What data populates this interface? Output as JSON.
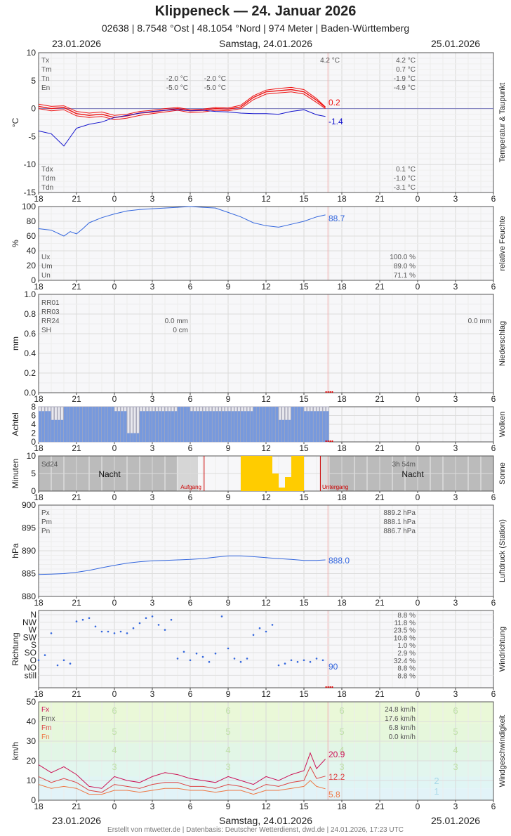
{
  "header": {
    "station": "Klippeneck",
    "separator": "—",
    "date_title": "24. Januar 2026",
    "subtitle": "02638  |  8.7548 °Ost  |  48.1054 °Nord  |  974 Meter  |  Baden-Württemberg",
    "date_left": "23.01.2026",
    "date_center": "Samstag, 24.01.2026",
    "date_right": "25.01.2026"
  },
  "footer": {
    "date_left": "23.01.2026",
    "date_center": "Samstag, 24.01.2026",
    "date_right": "25.01.2026",
    "credits": "Erstellt von mtwetter.de | Datenbasis: Deutscher Wetterdienst, dwd.de | 24.01.2026, 17:23 UTC"
  },
  "hour_ticks": [
    "18",
    "21",
    "0",
    "3",
    "6",
    "9",
    "12",
    "15",
    "18",
    "21",
    "0",
    "3",
    "6"
  ],
  "colors": {
    "temp": "#ee1111",
    "dew": "#1111cc",
    "blue": "#3366dd",
    "cloud": "#7799dd",
    "sun": "#ffcc00",
    "night": "#bbbbbb",
    "wind_fx": "#cc1155",
    "wind_fm": "#dd4444",
    "wind_fn": "#ee7744"
  },
  "chart_data": [
    {
      "type": "line",
      "id": "temperature",
      "ylabel": "°C",
      "side_label": "Temperatur & Taupunkt",
      "ylim": [
        -15,
        10
      ],
      "yticks": [
        10,
        5,
        0,
        -5,
        -10,
        -15
      ],
      "x_range_hours": [
        -6,
        30
      ],
      "series": [
        {
          "name": "Tx",
          "x": [
            -6,
            -5,
            -4,
            -3,
            -2,
            -1,
            0,
            1,
            2,
            3,
            4,
            5,
            6,
            7,
            8,
            9,
            10,
            11,
            12,
            13,
            14,
            15,
            16,
            16.7
          ],
          "values": [
            0.8,
            0.4,
            0.5,
            -0.5,
            -0.8,
            -0.6,
            -1.2,
            -1.0,
            -0.5,
            -0.3,
            0.0,
            0.2,
            -0.2,
            -0.1,
            0.2,
            0.1,
            0.6,
            2.3,
            3.3,
            3.6,
            3.8,
            3.4,
            1.8,
            0.3
          ]
        },
        {
          "name": "Tm",
          "x": [
            -6,
            -5,
            -4,
            -3,
            -2,
            -1,
            0,
            1,
            2,
            3,
            4,
            5,
            6,
            7,
            8,
            9,
            10,
            11,
            12,
            13,
            14,
            15,
            16,
            16.7
          ],
          "values": [
            0.4,
            0.0,
            0.2,
            -0.9,
            -1.2,
            -1.0,
            -1.6,
            -1.3,
            -0.8,
            -0.6,
            -0.3,
            0.0,
            -0.4,
            -0.3,
            0.0,
            -0.1,
            0.3,
            2.0,
            3.0,
            3.2,
            3.4,
            3.0,
            1.5,
            0.2
          ]
        },
        {
          "name": "Tn",
          "x": [
            -6,
            -5,
            -4,
            -3,
            -2,
            -1,
            0,
            1,
            2,
            3,
            4,
            5,
            6,
            7,
            8,
            9,
            10,
            11,
            12,
            13,
            14,
            15,
            16,
            16.7
          ],
          "values": [
            0.0,
            -0.4,
            -0.2,
            -1.3,
            -1.6,
            -1.4,
            -2.0,
            -1.7,
            -1.2,
            -0.9,
            -0.6,
            -0.3,
            -0.7,
            -0.6,
            -0.3,
            -0.4,
            0.0,
            1.6,
            2.6,
            2.8,
            3.0,
            2.6,
            1.1,
            0.0
          ]
        },
        {
          "name": "Td",
          "x": [
            -6,
            -5,
            -4,
            -3,
            -2,
            -1,
            0,
            1,
            2,
            3,
            4,
            5,
            6,
            7,
            8,
            9,
            10,
            11,
            12,
            13,
            14,
            15,
            16,
            16.7
          ],
          "values": [
            -4.0,
            -4.5,
            -6.7,
            -3.5,
            -2.8,
            -2.4,
            -1.6,
            -1.2,
            -0.8,
            -0.5,
            -0.3,
            -0.2,
            -0.4,
            -0.3,
            -0.5,
            -0.6,
            -0.8,
            -0.9,
            -0.9,
            -1.0,
            -0.5,
            -0.2,
            -1.1,
            -1.4
          ]
        }
      ],
      "stats_left": [
        {
          "label": "Tx",
          "v1": "",
          "v2": ""
        },
        {
          "label": "Tm",
          "v1": "",
          "v2": ""
        },
        {
          "label": "Tn",
          "v1": "-2.0 °C",
          "v2": "-2.0 °C"
        },
        {
          "label": "En",
          "v1": "-5.0 °C",
          "v2": "-5.0 °C"
        }
      ],
      "top_value": "4.2 °C",
      "stats_right": [
        "4.2 °C",
        "0.7 °C",
        "-1.9 °C",
        "-4.9 °C"
      ],
      "dew_stats": [
        {
          "label": "Tdx",
          "value": "0.1 °C"
        },
        {
          "label": "Tdm",
          "value": "-1.0 °C"
        },
        {
          "label": "Tdn",
          "value": "-3.1 °C"
        }
      ],
      "end_labels": [
        "0.2",
        "-1.4"
      ]
    },
    {
      "type": "line",
      "id": "humidity",
      "ylabel": "%",
      "side_label": "relative Feuchte",
      "ylim": [
        0,
        100
      ],
      "yticks": [
        100,
        80,
        60,
        40,
        20,
        0
      ],
      "series": [
        {
          "name": "relative Feuchte",
          "x": [
            -6,
            -5,
            -4,
            -3.5,
            -3,
            -2.5,
            -2,
            -1,
            0,
            1,
            2,
            3,
            4,
            5,
            6,
            7,
            8,
            9,
            10,
            11,
            12,
            13,
            14,
            15,
            16,
            16.7
          ],
          "values": [
            70,
            68,
            60,
            66,
            63,
            70,
            78,
            85,
            90,
            94,
            96,
            97,
            98,
            99,
            100,
            99,
            98,
            92,
            86,
            78,
            74,
            72,
            76,
            80,
            86,
            88.7
          ]
        }
      ],
      "stats": [
        {
          "label": "Ux",
          "value": "100.0 %"
        },
        {
          "label": "Um",
          "value": "89.0 %"
        },
        {
          "label": "Un",
          "value": "71.1 %"
        }
      ],
      "end_label": "88.7"
    },
    {
      "type": "bar",
      "id": "precipitation",
      "ylabel": "mm",
      "side_label": "Niederschlag",
      "ylim": [
        0,
        1.0
      ],
      "yticks": [
        "1.0",
        "0.8",
        "0.6",
        "0.4",
        "0.2",
        "0.0"
      ],
      "labels": [
        "RR01",
        "RR03",
        "RR24",
        "SH"
      ],
      "values_mid": [
        "0.0 mm",
        "0 cm"
      ],
      "value_right": "0.0 mm"
    },
    {
      "type": "bar",
      "id": "clouds",
      "ylabel": "Achtel",
      "side_label": "Wolken",
      "ylim": [
        0,
        8
      ],
      "yticks": [
        8,
        6,
        4,
        2,
        0
      ],
      "x": [
        -6,
        -5,
        -4,
        -3,
        -2,
        -1,
        0,
        1,
        2,
        3,
        4,
        5,
        6,
        7,
        8,
        9,
        10,
        11,
        12,
        13,
        14,
        15,
        16
      ],
      "values": [
        7,
        5,
        8,
        8,
        8,
        8,
        7,
        2,
        7,
        7,
        7,
        8,
        7,
        7,
        7,
        7,
        7,
        8,
        8,
        5,
        8,
        7,
        7
      ]
    },
    {
      "type": "bar",
      "id": "sunshine",
      "ylabel": "Minuten",
      "side_label": "Sonne",
      "ylim": [
        0,
        10
      ],
      "yticks": [
        10,
        5,
        0
      ],
      "label_left": "Sd24",
      "label_right": "3h 54m",
      "night_label": "Nacht",
      "sunrise_label": "Aufgang",
      "sunset_label": "Untergang",
      "x": [
        9.5,
        10,
        10.5,
        11,
        11.5,
        12,
        12.5,
        13,
        13.5,
        14,
        14.5,
        15,
        15.5
      ],
      "values": [
        0,
        10,
        10,
        10,
        10,
        10,
        5,
        1,
        4,
        10,
        10,
        0,
        0
      ]
    },
    {
      "type": "line",
      "id": "pressure",
      "ylabel": "hPa",
      "side_label": "Luftdruck (Station)",
      "ylim": [
        880,
        900
      ],
      "yticks": [
        900,
        895,
        890,
        885,
        880
      ],
      "series": [
        {
          "name": "Luftdruck",
          "x": [
            -6,
            -5,
            -4,
            -3,
            -2,
            -1,
            0,
            1,
            2,
            3,
            4,
            5,
            6,
            7,
            8,
            9,
            10,
            11,
            12,
            13,
            14,
            15,
            16,
            16.7
          ],
          "values": [
            884.8,
            884.9,
            885.0,
            885.3,
            885.7,
            886.3,
            886.8,
            887.3,
            887.6,
            887.8,
            887.9,
            888.0,
            888.1,
            888.3,
            888.6,
            888.9,
            888.9,
            888.7,
            888.5,
            888.3,
            888.1,
            887.9,
            887.9,
            888.0
          ]
        }
      ],
      "stats": [
        {
          "label": "Px",
          "value": "889.2 hPa"
        },
        {
          "label": "Pm",
          "value": "888.1 hPa"
        },
        {
          "label": "Pn",
          "value": "886.7 hPa"
        }
      ],
      "end_label": "888.0"
    },
    {
      "type": "scatter",
      "id": "wind_direction",
      "ylabel": "Richtung",
      "side_label": "Windrichtung",
      "categories": [
        "N",
        "NW",
        "W",
        "SW",
        "S",
        "SO",
        "O",
        "NO",
        "still"
      ],
      "percentages": [
        "8.8 %",
        "11.8 %",
        "23.5 %",
        "10.8 %",
        "1.0 %",
        "2.9 %",
        "32.4 %",
        "8.8 %",
        "8.8 %"
      ],
      "x": [
        -6,
        -5.5,
        -5,
        -4.5,
        -4,
        -3.5,
        -3,
        -2.5,
        -2,
        -1.5,
        -1,
        -0.5,
        0,
        0.5,
        1,
        1.5,
        2,
        2.5,
        3,
        3.5,
        4,
        4.5,
        5,
        5.5,
        6,
        6.5,
        7,
        7.5,
        8,
        8.5,
        9,
        9.5,
        10,
        10.5,
        11,
        11.5,
        12,
        12.5,
        13,
        13.5,
        14,
        14.5,
        15,
        15.5,
        16,
        16.5
      ],
      "values": [
        90,
        120,
        250,
        60,
        90,
        70,
        320,
        330,
        340,
        290,
        260,
        260,
        250,
        260,
        250,
        280,
        310,
        340,
        350,
        300,
        270,
        330,
        100,
        140,
        90,
        130,
        110,
        80,
        130,
        350,
        160,
        100,
        80,
        100,
        240,
        280,
        260,
        300,
        60,
        70,
        90,
        80,
        90,
        80,
        100,
        90
      ],
      "end_label": "90"
    },
    {
      "type": "line",
      "id": "wind_speed",
      "ylabel": "km/h",
      "side_label": "Windgeschwindigkeit",
      "ylim": [
        0,
        50
      ],
      "yticks": [
        50,
        40,
        30,
        20,
        10,
        0
      ],
      "beaufort_labels": [
        "6",
        "5",
        "4",
        "3",
        "2",
        "1"
      ],
      "series": [
        {
          "name": "Fx",
          "x": [
            -6,
            -5,
            -4,
            -3,
            -2,
            -1,
            0,
            1,
            2,
            3,
            4,
            5,
            6,
            7,
            8,
            9,
            10,
            11,
            12,
            13,
            14,
            15,
            15.5,
            16,
            16.7
          ],
          "values": [
            18,
            14,
            17,
            13,
            7,
            6,
            12,
            10,
            9,
            12,
            14,
            13,
            11,
            10,
            9,
            12,
            10,
            8,
            12,
            10,
            13,
            15,
            24,
            16,
            20.9
          ]
        },
        {
          "name": "Fmx",
          "x": [
            -6,
            -5,
            -4,
            -3,
            -2,
            -1,
            0,
            1,
            2,
            3,
            4,
            5,
            6,
            7,
            8,
            9,
            10,
            11,
            12,
            13,
            14,
            15,
            15.5,
            16,
            16.7
          ],
          "values": [
            12,
            9,
            11,
            9,
            5,
            4,
            8,
            7,
            6,
            8,
            9,
            9,
            7,
            7,
            6,
            8,
            7,
            5,
            8,
            7,
            9,
            10,
            17,
            11,
            12.2
          ]
        },
        {
          "name": "Fm",
          "x": [
            -6,
            -5,
            -4,
            -3,
            -2,
            -1,
            0,
            1,
            2,
            3,
            4,
            5,
            6,
            7,
            8,
            9,
            10,
            11,
            12,
            13,
            14,
            15,
            15.5,
            16,
            16.7
          ],
          "values": [
            8,
            6,
            7,
            6,
            3,
            3,
            5,
            5,
            4,
            5,
            6,
            6,
            5,
            5,
            4,
            5,
            5,
            3,
            5,
            5,
            6,
            7,
            10,
            7,
            5.8
          ]
        }
      ],
      "stats": [
        {
          "label": "Fx",
          "value": "24.8 km/h",
          "color": "#cc1155"
        },
        {
          "label": "Fmx",
          "value": "17.6 km/h",
          "color": "#555555"
        },
        {
          "label": "Fm",
          "value": "6.8 km/h",
          "color": "#dd4444"
        },
        {
          "label": "Fn",
          "value": "0.0 km/h",
          "color": "#ee7744"
        }
      ],
      "end_labels": [
        "20.9",
        "12.2",
        "5.8"
      ]
    }
  ]
}
